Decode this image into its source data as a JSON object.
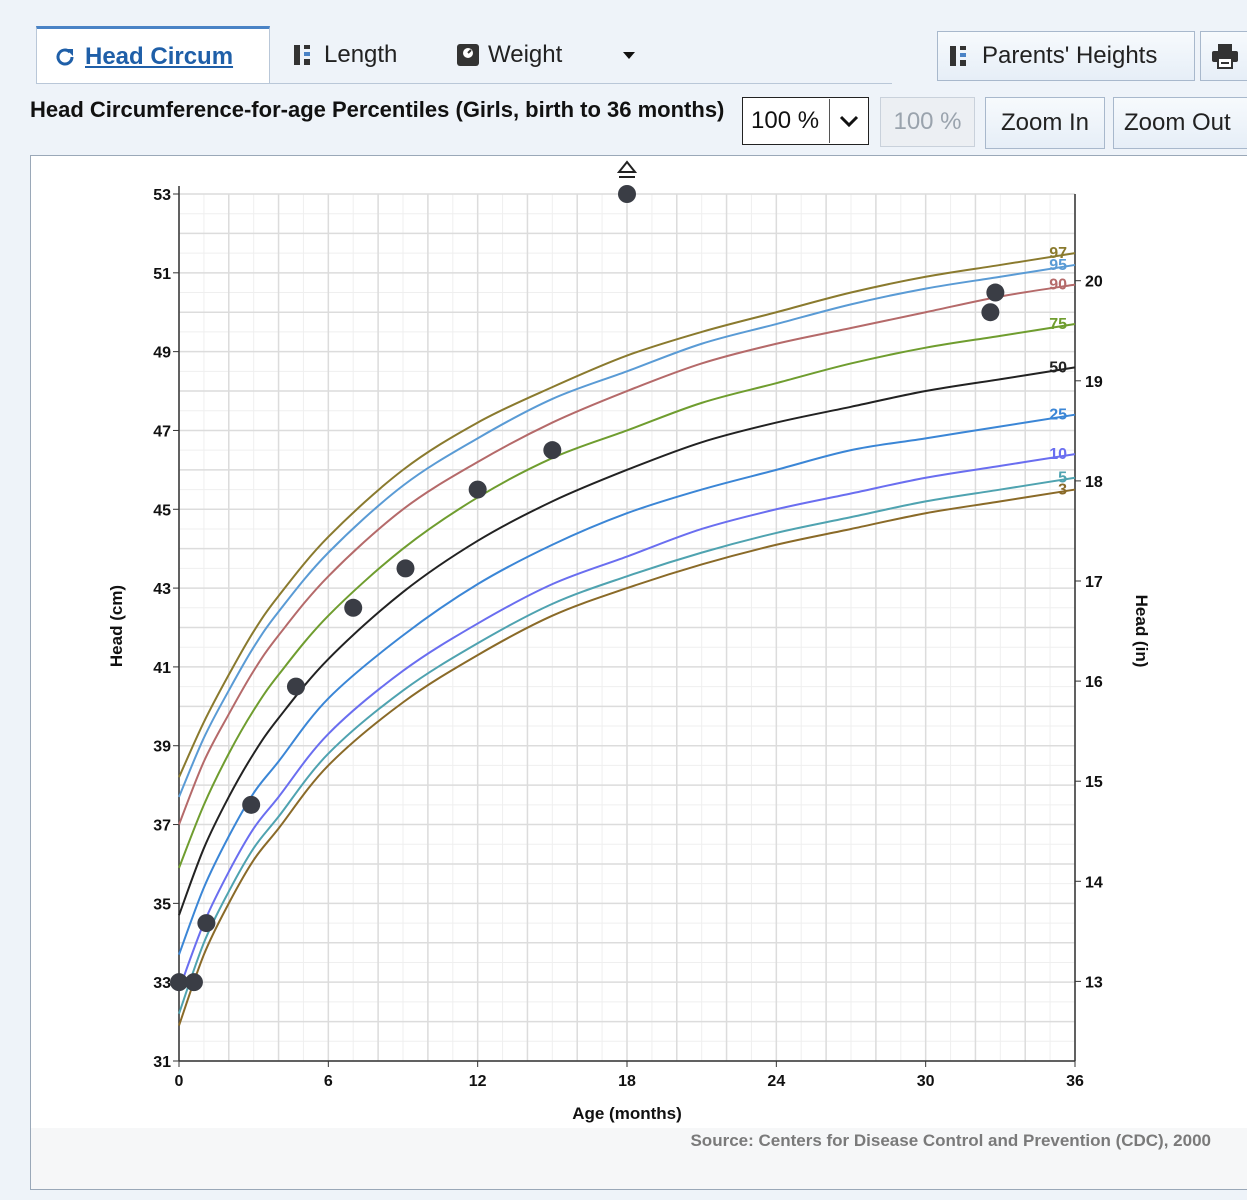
{
  "tabs": [
    {
      "label": "Head Circum",
      "icon": "refresh-icon",
      "active": true
    },
    {
      "label": "Length",
      "icon": "ruler-bars-icon",
      "active": false
    },
    {
      "label": "Weight",
      "icon": "scale-icon",
      "active": false
    }
  ],
  "toolbar": {
    "parents_heights_label": "Parents' Heights",
    "print_icon": "printer-icon",
    "zoom_value": "100 %",
    "zoom_disabled_label": "100 %",
    "zoom_in_label": "Zoom In",
    "zoom_out_label": "Zoom Out"
  },
  "colors": {
    "active_tab": "#1f5fa8",
    "grid": "#dcdcdc",
    "point": "#3a3d45"
  },
  "chart_data": {
    "type": "line",
    "title": "Head Circumference-for-age Percentiles (Girls, birth to 36 months)",
    "xlabel": "Age (months)",
    "ylabel": "Head (cm)",
    "ylabel_right": "Head (in)",
    "xlim": [
      0,
      36
    ],
    "ylim": [
      31,
      53
    ],
    "xticks": [
      0,
      6,
      12,
      18,
      24,
      30,
      36
    ],
    "yticks": [
      31,
      33,
      35,
      37,
      39,
      41,
      43,
      45,
      47,
      49,
      51,
      53
    ],
    "yticks_right": [
      13,
      14,
      15,
      16,
      17,
      18,
      19,
      20
    ],
    "grid": true,
    "source": "Source: Centers for Disease Control and Prevention (CDC), 2000",
    "series": [
      {
        "name": "97",
        "color": "#8a7a2e",
        "x": [
          0,
          1,
          2,
          3,
          4,
          6,
          9,
          12,
          15,
          18,
          21,
          24,
          27,
          30,
          33,
          36
        ],
        "values": [
          38.2,
          39.6,
          40.8,
          41.9,
          42.8,
          44.3,
          46.0,
          47.2,
          48.1,
          48.9,
          49.5,
          50.0,
          50.5,
          50.9,
          51.2,
          51.5
        ]
      },
      {
        "name": "95",
        "color": "#5a9bd5",
        "x": [
          0,
          1,
          2,
          3,
          4,
          6,
          9,
          12,
          15,
          18,
          21,
          24,
          27,
          30,
          33,
          36
        ],
        "values": [
          37.7,
          39.2,
          40.4,
          41.5,
          42.4,
          43.9,
          45.6,
          46.8,
          47.8,
          48.5,
          49.2,
          49.7,
          50.2,
          50.6,
          50.9,
          51.2
        ]
      },
      {
        "name": "90",
        "color": "#b56a6a",
        "x": [
          0,
          1,
          2,
          3,
          4,
          6,
          9,
          12,
          15,
          18,
          21,
          24,
          27,
          30,
          33,
          36
        ],
        "values": [
          37.0,
          38.6,
          39.8,
          40.9,
          41.8,
          43.3,
          45.0,
          46.2,
          47.2,
          48.0,
          48.7,
          49.2,
          49.6,
          50.0,
          50.4,
          50.7
        ]
      },
      {
        "name": "75",
        "color": "#6f9d2f",
        "x": [
          0,
          1,
          2,
          3,
          4,
          6,
          9,
          12,
          15,
          18,
          21,
          24,
          27,
          30,
          33,
          36
        ],
        "values": [
          35.9,
          37.5,
          38.8,
          39.9,
          40.8,
          42.3,
          44.0,
          45.3,
          46.3,
          47.0,
          47.7,
          48.2,
          48.7,
          49.1,
          49.4,
          49.7
        ]
      },
      {
        "name": "50",
        "color": "#222222",
        "x": [
          0,
          1,
          2,
          3,
          4,
          6,
          9,
          12,
          15,
          18,
          21,
          24,
          27,
          30,
          33,
          36
        ],
        "values": [
          34.7,
          36.4,
          37.7,
          38.8,
          39.7,
          41.2,
          42.9,
          44.2,
          45.2,
          46.0,
          46.7,
          47.2,
          47.6,
          48.0,
          48.3,
          48.6
        ]
      },
      {
        "name": "25",
        "color": "#3b86d6",
        "x": [
          0,
          1,
          2,
          3,
          4,
          6,
          9,
          12,
          15,
          18,
          21,
          24,
          27,
          30,
          33,
          36
        ],
        "values": [
          33.7,
          35.4,
          36.7,
          37.8,
          38.6,
          40.2,
          41.8,
          43.1,
          44.1,
          44.9,
          45.5,
          46.0,
          46.5,
          46.8,
          47.1,
          47.4
        ]
      },
      {
        "name": "10",
        "color": "#6a6ef0",
        "x": [
          0,
          1,
          2,
          3,
          4,
          6,
          9,
          12,
          15,
          18,
          21,
          24,
          27,
          30,
          33,
          36
        ],
        "values": [
          32.8,
          34.5,
          35.8,
          36.9,
          37.7,
          39.3,
          40.9,
          42.1,
          43.1,
          43.8,
          44.5,
          45.0,
          45.4,
          45.8,
          46.1,
          46.4
        ]
      },
      {
        "name": "5",
        "color": "#4fa3b0",
        "x": [
          0,
          1,
          2,
          3,
          4,
          6,
          9,
          12,
          15,
          18,
          21,
          24,
          27,
          30,
          33,
          36
        ],
        "values": [
          32.2,
          34.0,
          35.3,
          36.4,
          37.2,
          38.8,
          40.4,
          41.6,
          42.6,
          43.3,
          43.9,
          44.4,
          44.8,
          45.2,
          45.5,
          45.8
        ]
      },
      {
        "name": "3",
        "color": "#8a6a28",
        "x": [
          0,
          1,
          2,
          3,
          4,
          6,
          9,
          12,
          15,
          18,
          21,
          24,
          27,
          30,
          33,
          36
        ],
        "values": [
          31.9,
          33.7,
          35.0,
          36.1,
          36.9,
          38.5,
          40.1,
          41.3,
          42.3,
          43.0,
          43.6,
          44.1,
          44.5,
          44.9,
          45.2,
          45.5
        ]
      }
    ],
    "measurements": [
      {
        "x": 0,
        "y": 33
      },
      {
        "x": 0.6,
        "y": 33
      },
      {
        "x": 1.1,
        "y": 34.5
      },
      {
        "x": 2.9,
        "y": 37.5
      },
      {
        "x": 4.7,
        "y": 40.5
      },
      {
        "x": 7.0,
        "y": 42.5
      },
      {
        "x": 9.1,
        "y": 43.5
      },
      {
        "x": 12.0,
        "y": 45.5
      },
      {
        "x": 15.0,
        "y": 46.5
      },
      {
        "x": 18.0,
        "y": 53.0,
        "off_chart": true
      },
      {
        "x": 32.6,
        "y": 50.0
      },
      {
        "x": 32.8,
        "y": 50.5
      }
    ]
  }
}
